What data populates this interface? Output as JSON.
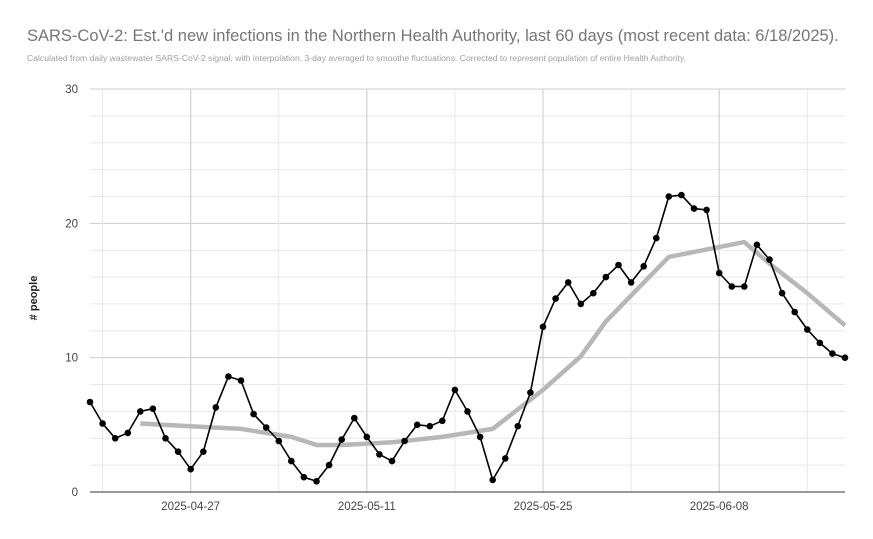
{
  "chart_data": {
    "type": "line",
    "title": "SARS-CoV-2: Est.'d new infections in the Northern Health Authority, last 60 days (most recent data: 6/18/2025).",
    "subtitle": "Calculated from daily wastewater SARS-CoV-2 signal, with interpolation. 3-day averaged to smoothe fluctuations. Corrected to represent population of entire Health Authority.",
    "xlabel": "",
    "ylabel": "# people",
    "ylim": [
      0,
      30
    ],
    "yticks": [
      "0",
      "10",
      "20",
      "30"
    ],
    "xticks": [
      {
        "label": "2025-04-27",
        "day": 8
      },
      {
        "label": "2025-05-11",
        "day": 22
      },
      {
        "label": "2025-05-25",
        "day": 36
      },
      {
        "label": "2025-06-08",
        "day": 50
      }
    ],
    "x_start": "2025-04-19",
    "grid": true,
    "colors": {
      "daily": "#000000",
      "trend": "#b7b7b7"
    },
    "series": [
      {
        "id": "daily",
        "x": [
          0,
          1,
          2,
          3,
          4,
          5,
          6,
          7,
          8,
          9,
          10,
          11,
          12,
          13,
          14,
          15,
          16,
          17,
          18,
          19,
          20,
          21,
          22,
          23,
          24,
          25,
          26,
          27,
          28,
          29,
          30,
          31,
          32,
          33,
          34,
          35,
          36,
          37,
          38,
          39,
          40,
          41,
          42,
          43,
          44,
          45,
          46,
          47,
          48,
          49,
          50,
          51,
          52,
          53,
          54,
          55,
          56,
          57,
          58,
          59,
          60
        ],
        "values": [
          6.7,
          5.1,
          4.0,
          4.4,
          6.0,
          6.2,
          4.0,
          3.0,
          1.7,
          3.0,
          6.3,
          8.6,
          8.3,
          5.8,
          4.8,
          3.8,
          2.3,
          1.1,
          0.8,
          2.0,
          3.9,
          5.5,
          4.1,
          2.8,
          2.3,
          3.8,
          5.0,
          4.9,
          5.3,
          7.6,
          6.0,
          4.1,
          0.9,
          2.5,
          4.9,
          7.4,
          12.3,
          14.4,
          15.6,
          14.0,
          14.8,
          16.0,
          16.9,
          15.6,
          16.8,
          18.9,
          22.0,
          22.1,
          21.1,
          21.0,
          16.3,
          15.3,
          15.3,
          18.4,
          17.3,
          14.8,
          13.4,
          12.1,
          11.1,
          10.3,
          10.0
        ]
      },
      {
        "id": "trend",
        "x": [
          4,
          8,
          12,
          16,
          18,
          20,
          24,
          28,
          32,
          36,
          39,
          41,
          46,
          52,
          54,
          57,
          60
        ],
        "values": [
          5.1,
          4.9,
          4.7,
          4.1,
          3.5,
          3.5,
          3.7,
          4.1,
          4.7,
          7.6,
          10.1,
          12.7,
          17.5,
          18.6,
          17.0,
          14.8,
          12.4
        ]
      }
    ]
  }
}
